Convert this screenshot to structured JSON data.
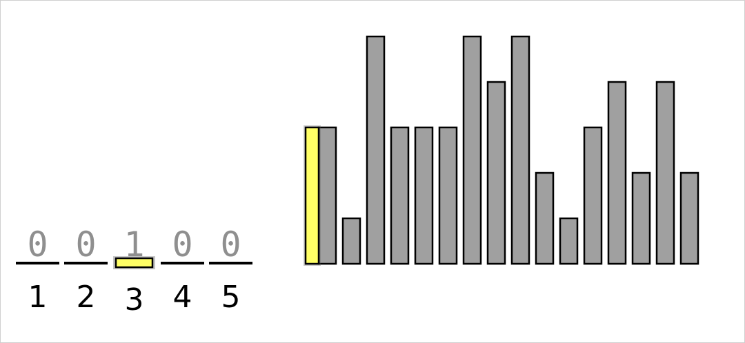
{
  "counting_array": {
    "digits": [
      "0",
      "0",
      "1",
      "0",
      "0"
    ],
    "indices": [
      "1",
      "2",
      "3",
      "4",
      "5"
    ],
    "active_index": 2
  },
  "chart_data": {
    "type": "bar",
    "values": [
      3,
      1,
      5,
      3,
      3,
      3,
      5,
      4,
      5,
      2,
      1,
      3,
      4,
      2,
      4,
      2
    ],
    "highlighted_bar": 0,
    "ylim": [
      0,
      5
    ],
    "grid": false,
    "legend": "none"
  },
  "colors": {
    "highlight": "#ffff66",
    "bar_fill": "#a0a0a0",
    "outline": "#000000",
    "digit": "#8f8f8f",
    "background": "#ffffff"
  }
}
